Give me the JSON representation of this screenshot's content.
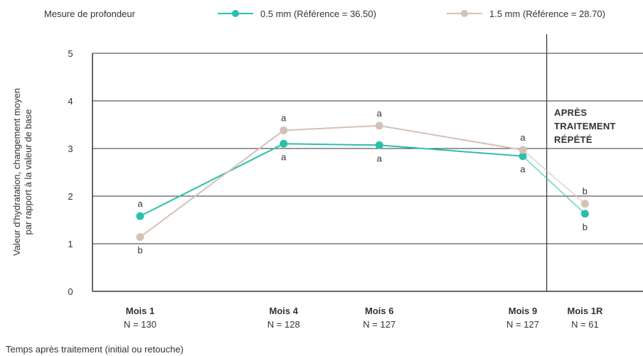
{
  "legend": {
    "title": "Mesure de profondeur",
    "items": [
      {
        "label": "0.5 mm (Référence = 36.50)",
        "color": "#2bbfaa"
      },
      {
        "label": "1.5 mm (Référence = 28.70)",
        "color": "#d4c1b6"
      }
    ]
  },
  "annotation": [
    "APRÈS",
    "TRAITEMENT",
    "RÉPÉTÉ"
  ],
  "chart_data": {
    "type": "line",
    "ylabel": [
      "Valeur d’hydratation, changement moyen",
      "par rapport à la valeur de base"
    ],
    "xlabel": "Temps après traitement (initial ou retouche)",
    "ylim": [
      0,
      5
    ],
    "yticks": [
      "0",
      "1",
      "2",
      "3",
      "4",
      "5"
    ],
    "grid": true,
    "categories": [
      "Mois 1",
      "Mois 4",
      "Mois 6",
      "Mois 9",
      "Mois 1R"
    ],
    "x_months": [
      1,
      4,
      6,
      9,
      10.3
    ],
    "counts": [
      "N = 130",
      "N = 128",
      "N = 127",
      "N = 127",
      "N = 61"
    ],
    "series": [
      {
        "name": "0.5 mm (Référence = 36.50)",
        "color": "#2bbfaa",
        "values": [
          1.58,
          3.1,
          3.07,
          2.84,
          1.63
        ],
        "letters": [
          "a",
          "a",
          "a",
          "a",
          "b"
        ]
      },
      {
        "name": "1.5 mm (Référence = 28.70)",
        "color": "#d4c1b6",
        "values": [
          1.14,
          3.38,
          3.48,
          2.97,
          1.84
        ],
        "letters": [
          "b",
          "a",
          "a",
          "a",
          "b"
        ]
      }
    ]
  }
}
